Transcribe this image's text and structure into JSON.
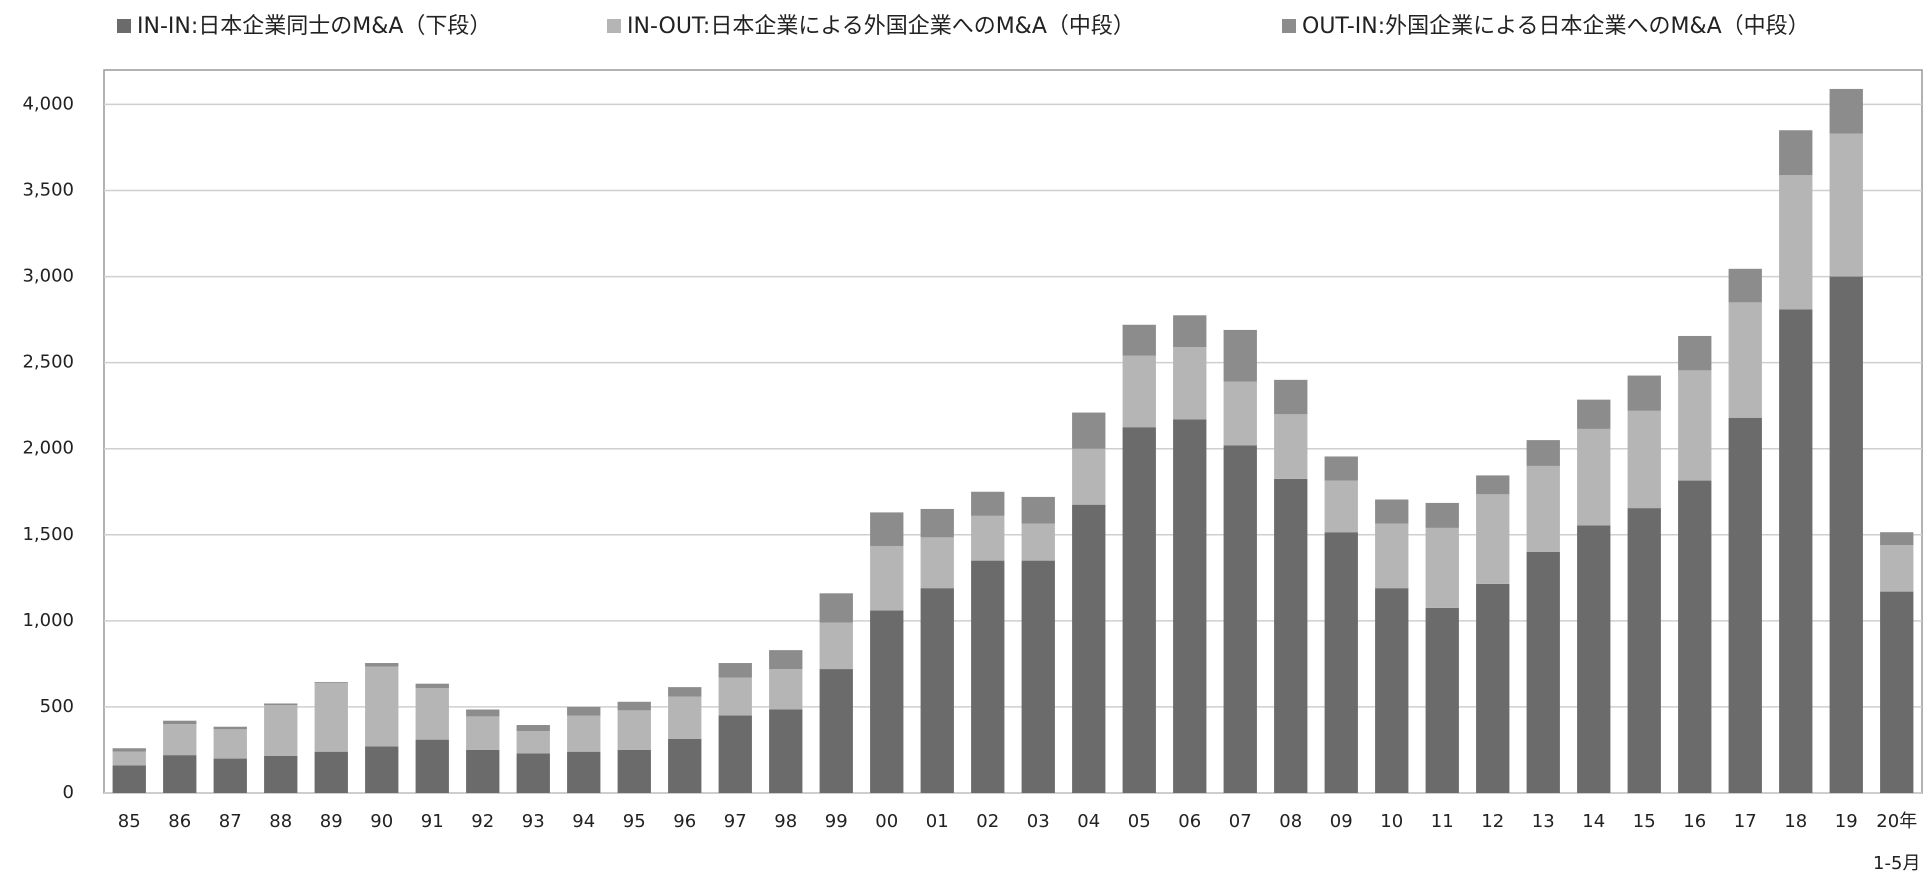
{
  "chart_data": {
    "type": "stacked_bar",
    "categories": [
      "85",
      "86",
      "87",
      "88",
      "89",
      "90",
      "91",
      "92",
      "93",
      "94",
      "95",
      "96",
      "97",
      "98",
      "99",
      "00",
      "01",
      "02",
      "03",
      "04",
      "05",
      "06",
      "07",
      "08",
      "09",
      "10",
      "11",
      "12",
      "13",
      "14",
      "15",
      "16",
      "17",
      "18",
      "19",
      "20年"
    ],
    "x_note": "1-5月",
    "series": [
      {
        "name": "IN-IN:日本企業同士のM&A（下段）",
        "color": "#6b6b6b",
        "values": [
          160,
          220,
          200,
          215,
          240,
          270,
          310,
          250,
          230,
          240,
          250,
          315,
          450,
          485,
          720,
          1060,
          1190,
          1350,
          1350,
          1675,
          2125,
          2170,
          2020,
          1825,
          1515,
          1190,
          1075,
          1215,
          1400,
          1555,
          1655,
          1815,
          2180,
          2810,
          3000,
          1170
        ]
      },
      {
        "name": "IN-OUT:日本企業による外国企業へのM&A（中段）",
        "color": "#b5b5b5",
        "values": [
          80,
          180,
          170,
          295,
          400,
          465,
          300,
          195,
          130,
          210,
          230,
          245,
          220,
          235,
          270,
          375,
          295,
          260,
          215,
          325,
          415,
          420,
          370,
          375,
          300,
          375,
          465,
          520,
          500,
          560,
          565,
          640,
          670,
          780,
          830,
          270
        ]
      },
      {
        "name": "OUT-IN:外国企業による日本企業へのM&A（中段）",
        "color": "#8c8c8c",
        "values": [
          20,
          20,
          15,
          10,
          5,
          20,
          25,
          40,
          35,
          50,
          50,
          55,
          85,
          110,
          170,
          195,
          165,
          140,
          155,
          210,
          180,
          185,
          300,
          200,
          140,
          140,
          145,
          110,
          150,
          170,
          205,
          200,
          195,
          260,
          260,
          75
        ]
      }
    ],
    "ylim": [
      0,
      4200
    ],
    "yticks": [
      0,
      500,
      {
        "value": 1000,
        "label": "1,000"
      },
      {
        "value": 1500,
        "label": "1,500"
      },
      {
        "value": 2000,
        "label": "2,000"
      },
      {
        "value": 2500,
        "label": "2,500"
      },
      {
        "value": 3000,
        "label": "3,000"
      },
      {
        "value": 3500,
        "label": "3,500"
      },
      {
        "value": 4000,
        "label": "4,000"
      }
    ],
    "grid": true
  }
}
